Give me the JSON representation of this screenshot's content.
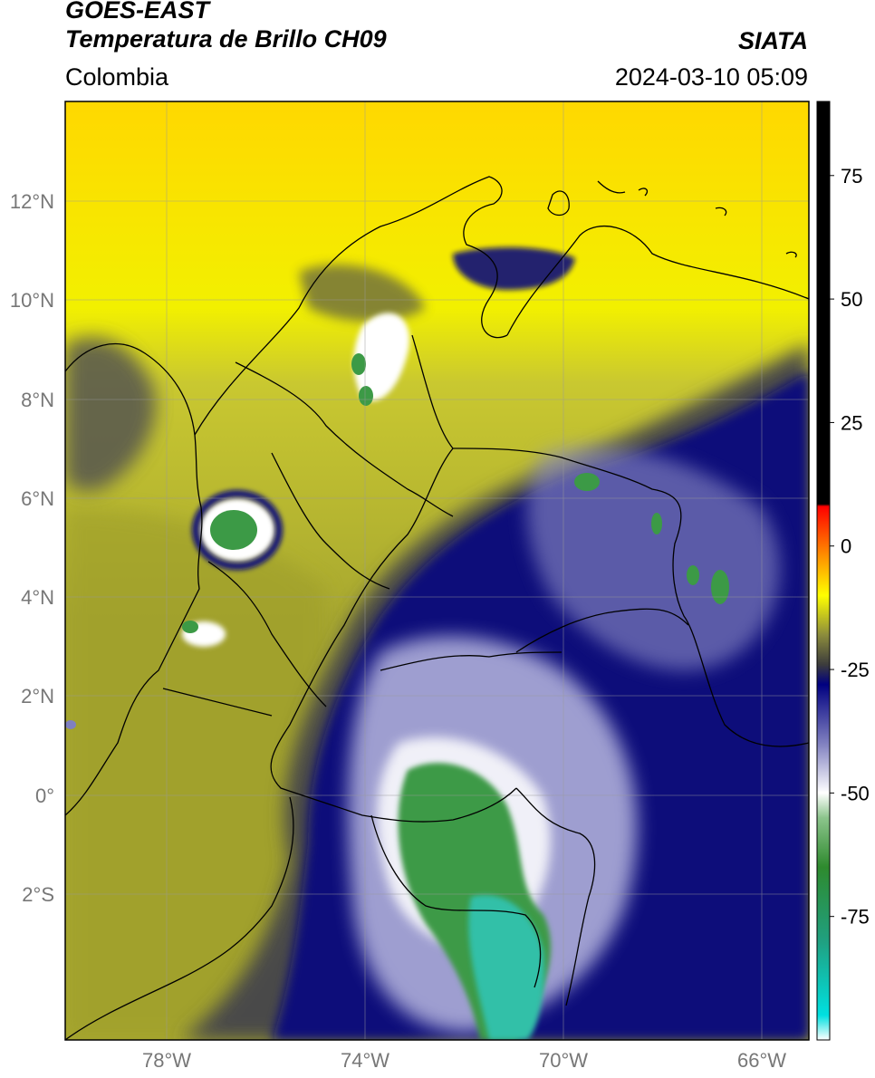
{
  "header": {
    "satellite": "GOES-EAST",
    "product": "Temperatura de Brillo CH09",
    "organization": "SIATA",
    "region": "Colombia",
    "datetime": "2024-03-10 05:09"
  },
  "map": {
    "lat_ticks": [
      "12°N",
      "10°N",
      "8°N",
      "6°N",
      "4°N",
      "2°N",
      "0°",
      "2°S"
    ],
    "lon_ticks": [
      "78°W",
      "74°W",
      "70°W",
      "66°W"
    ],
    "lon_range": [
      -79.8,
      -64.8
    ],
    "lat_range": [
      -4.3,
      14.0
    ],
    "grid": true
  },
  "colorbar": {
    "ticks": [
      "75",
      "50",
      "25",
      "0",
      "-25",
      "-50",
      "-75"
    ],
    "tick_values": [
      75,
      50,
      25,
      0,
      -25,
      -50,
      -75
    ],
    "range": [
      -100,
      90
    ],
    "stops": [
      {
        "v": -100,
        "c": "#ffffff"
      },
      {
        "v": -95,
        "c": "#00e0e0"
      },
      {
        "v": -80,
        "c": "#20a080"
      },
      {
        "v": -65,
        "c": "#2e8a2e"
      },
      {
        "v": -55,
        "c": "#8cc48c"
      },
      {
        "v": -50,
        "c": "#ffffff"
      },
      {
        "v": -40,
        "c": "#8080c0"
      },
      {
        "v": -28,
        "c": "#000080"
      },
      {
        "v": -24,
        "c": "#3c3c3c"
      },
      {
        "v": -18,
        "c": "#8c8c3c"
      },
      {
        "v": -10,
        "c": "#ffff00"
      },
      {
        "v": -2,
        "c": "#ff9000"
      },
      {
        "v": 8,
        "c": "#ff0000"
      },
      {
        "v": 8.5,
        "c": "#000000"
      },
      {
        "v": 90,
        "c": "#000000"
      }
    ]
  },
  "palette": {
    "yellow": "#f2f000",
    "olive": "#b8b828",
    "dark_gray": "#555550",
    "navy": "#0a0a7a",
    "green": "#3c9a46",
    "teal": "#30c0a8"
  }
}
